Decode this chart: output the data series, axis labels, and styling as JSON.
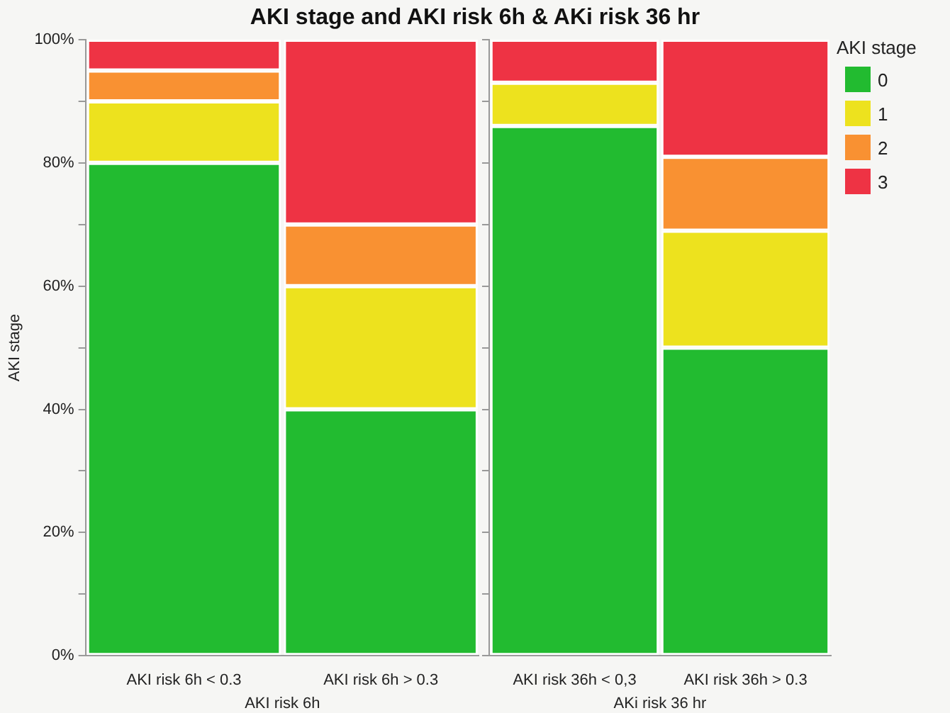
{
  "chart_data": [
    {
      "type": "bar",
      "title": "AKI stage and AKI risk 6h & AKi risk 36 hr",
      "ylabel": "AKI stage",
      "xlabel": "AKI risk 6h",
      "categories": [
        "AKI risk 6h < 0.3",
        "AKI risk 6h > 0.3"
      ],
      "stacked": true,
      "legend": false,
      "grid": false,
      "ylim": [
        0,
        100
      ],
      "yticks": [
        {
          "value": 0,
          "label": "0%"
        },
        {
          "value": 10,
          "label": null
        },
        {
          "value": 20,
          "label": "20%"
        },
        {
          "value": 30,
          "label": null
        },
        {
          "value": 40,
          "label": "40%"
        },
        {
          "value": 50,
          "label": null
        },
        {
          "value": 60,
          "label": "60%"
        },
        {
          "value": 70,
          "label": null
        },
        {
          "value": 80,
          "label": "80%"
        },
        {
          "value": 90,
          "label": null
        },
        {
          "value": 100,
          "label": "100%"
        }
      ],
      "series": [
        {
          "color": "#22bb30",
          "values": [
            80,
            40
          ]
        },
        {
          "color": "#ede21e",
          "values": [
            10,
            20
          ]
        },
        {
          "color": "#f99132",
          "values": [
            5,
            10
          ]
        },
        {
          "color": "#ee3344",
          "values": [
            5,
            30
          ]
        }
      ]
    },
    {
      "type": "bar",
      "xlabel": "AKi risk 36 hr",
      "legend_title": "AKI stage",
      "categories": [
        "AKI risk 36h < 0,3",
        "AKI risk 36h > 0.3"
      ],
      "stacked": true,
      "legend": "right",
      "grid": false,
      "tick_labels": "x",
      "ylim": [
        0,
        100
      ],
      "yticks": [
        0,
        10,
        20,
        30,
        40,
        50,
        60,
        70,
        80,
        90,
        100
      ],
      "series": [
        {
          "name": "0",
          "color": "#22bb30",
          "values": [
            86,
            50
          ]
        },
        {
          "name": "1",
          "color": "#ede21e",
          "values": [
            7,
            19
          ]
        },
        {
          "name": "2",
          "color": "#f99132",
          "values": [
            0,
            12
          ]
        },
        {
          "name": "3",
          "color": "#ee3344",
          "values": [
            7,
            19
          ]
        }
      ]
    }
  ]
}
